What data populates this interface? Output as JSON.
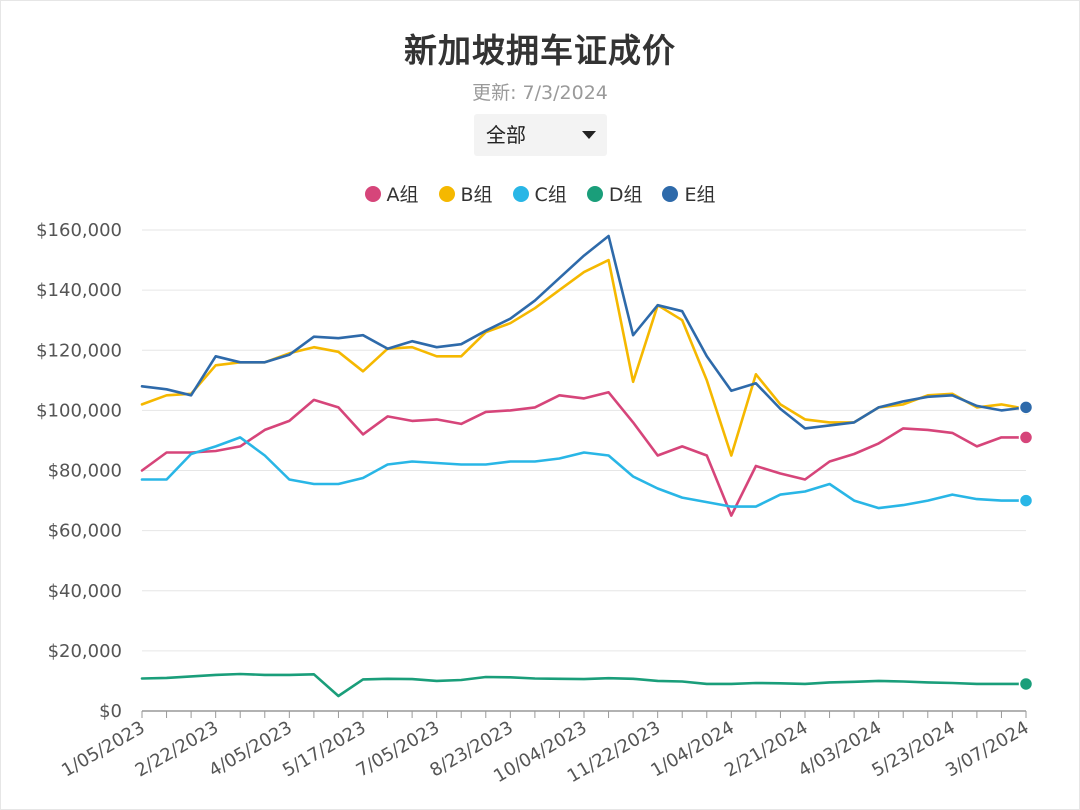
{
  "header": {
    "title": "新加坡拥车证成价",
    "subtitle": "更新: 7/3/2024"
  },
  "filter": {
    "selected": "全部"
  },
  "chart_data": {
    "type": "line",
    "title": "新加坡拥车证成价",
    "subtitle": "更新: 7/3/2024",
    "xlabel": "",
    "ylabel": "",
    "ylim": [
      0,
      160000
    ],
    "grid": true,
    "legend_position": "top-center",
    "y_ticks": [
      "$0",
      "$20,000",
      "$40,000",
      "$60,000",
      "$80,000",
      "$100,000",
      "$120,000",
      "$140,000",
      "$160,000"
    ],
    "x_tick_labels": [
      "1/05/2023",
      "2/22/2023",
      "4/05/2023",
      "5/17/2023",
      "7/05/2023",
      "8/23/2023",
      "10/04/2023",
      "11/22/2023",
      "1/04/2024",
      "2/21/2024",
      "4/03/2024",
      "5/23/2024",
      "3/07/2024"
    ],
    "x_tick_every": 3,
    "point_count": 37,
    "series": [
      {
        "name": "A组",
        "color": "#d6457a",
        "values": [
          80000,
          86000,
          86000,
          86500,
          88000,
          93500,
          96500,
          103500,
          101000,
          92000,
          98000,
          96500,
          97000,
          95500,
          99500,
          100000,
          101000,
          105000,
          104000,
          106000,
          96000,
          85000,
          88000,
          85000,
          65000,
          81500,
          79000,
          77000,
          83000,
          85500,
          89000,
          94000,
          93500,
          92500,
          88000,
          91000,
          91000
        ]
      },
      {
        "name": "B组",
        "color": "#f5b800",
        "values": [
          102000,
          105000,
          105500,
          115000,
          116000,
          116000,
          119000,
          121000,
          119500,
          113000,
          120500,
          121000,
          118000,
          118000,
          126000,
          129000,
          134000,
          140000,
          146000,
          150000,
          109500,
          135000,
          130000,
          110000,
          85000,
          112000,
          102000,
          97000,
          96000,
          96000,
          101000,
          102000,
          105000,
          105500,
          101000,
          102000,
          100500
        ]
      },
      {
        "name": "C组",
        "color": "#29b6e6",
        "values": [
          77000,
          77000,
          85500,
          88000,
          91000,
          85000,
          77000,
          75500,
          75500,
          77500,
          82000,
          83000,
          82500,
          82000,
          82000,
          83000,
          83000,
          84000,
          86000,
          85000,
          78000,
          74000,
          71000,
          69500,
          68000,
          68000,
          72000,
          73000,
          75500,
          70000,
          67500,
          68500,
          70000,
          72000,
          70500,
          70000,
          70000
        ]
      },
      {
        "name": "D组",
        "color": "#1a9e7a",
        "values": [
          10800,
          11000,
          11500,
          12000,
          12300,
          12000,
          12000,
          12200,
          5000,
          10500,
          10700,
          10600,
          10000,
          10300,
          11300,
          11200,
          10800,
          10700,
          10600,
          10900,
          10700,
          10000,
          9800,
          9000,
          9000,
          9300,
          9200,
          9000,
          9500,
          9700,
          10000,
          9800,
          9500,
          9300,
          9000,
          9000,
          9000
        ]
      },
      {
        "name": "E组",
        "color": "#2e6aaa",
        "values": [
          108000,
          107000,
          105000,
          118000,
          116000,
          116000,
          118500,
          124500,
          124000,
          125000,
          120500,
          123000,
          121000,
          122000,
          126500,
          130500,
          136500,
          144000,
          151500,
          158000,
          125000,
          135000,
          133000,
          118000,
          106500,
          109000,
          100500,
          94000,
          95000,
          96000,
          101000,
          103000,
          104500,
          105000,
          101500,
          100000,
          101000
        ]
      }
    ]
  }
}
